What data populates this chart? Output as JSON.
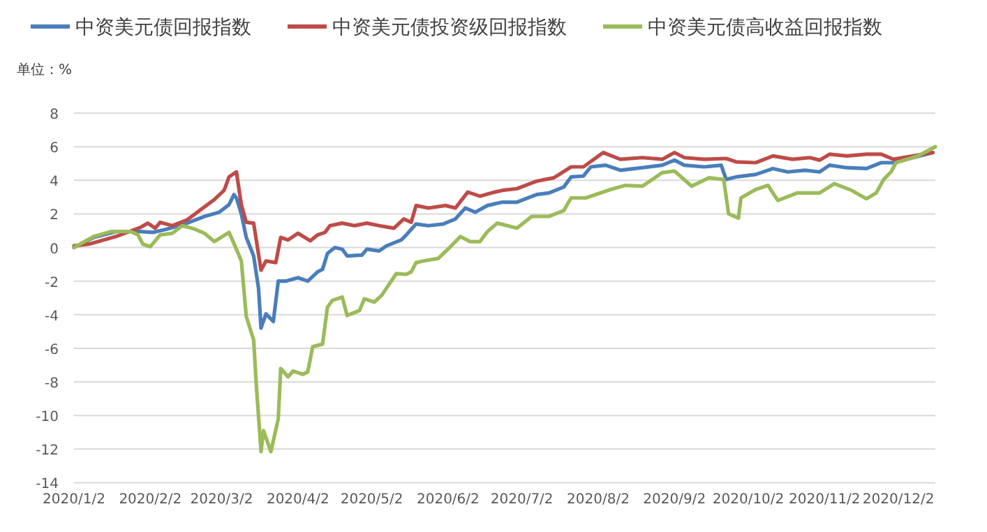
{
  "chart_data": {
    "type": "line",
    "ylabel": "单位：%",
    "legend": "top",
    "grid": "y",
    "line_style": "solid",
    "marker": "none",
    "xlim": [
      "2020-01-02",
      "2020-12-17"
    ],
    "xticks": [
      {
        "value": "2020-01-02",
        "label": "2020/1/2"
      },
      {
        "value": "2020-02-02",
        "label": "2020/2/2"
      },
      {
        "value": "2020-03-02",
        "label": "2020/3/2"
      },
      {
        "value": "2020-04-02",
        "label": "2020/4/2"
      },
      {
        "value": "2020-05-02",
        "label": "2020/5/2"
      },
      {
        "value": "2020-06-02",
        "label": "2020/6/2"
      },
      {
        "value": "2020-07-02",
        "label": "2020/7/2"
      },
      {
        "value": "2020-08-02",
        "label": "2020/8/2"
      },
      {
        "value": "2020-09-02",
        "label": "2020/9/2"
      },
      {
        "value": "2020-10-02",
        "label": "2020/10/2"
      },
      {
        "value": "2020-11-02",
        "label": "2020/11/2"
      },
      {
        "value": "2020-12-02",
        "label": "2020/12/2"
      }
    ],
    "ylim": [
      -14,
      8
    ],
    "yticks": [
      -14,
      -12,
      -10,
      -8,
      -6,
      -4,
      -2,
      0,
      2,
      4,
      6,
      8
    ],
    "series": [
      {
        "name": "中资美元债回报指数",
        "color": "#4a7ebb",
        "x": [
          "2020-01-02",
          "2020-01-10",
          "2020-01-19",
          "2020-01-29",
          "2020-02-03",
          "2020-02-09",
          "2020-02-17",
          "2020-02-24",
          "2020-03-01",
          "2020-03-05",
          "2020-03-07",
          "2020-03-08",
          "2020-03-10",
          "2020-03-12",
          "2020-03-15",
          "2020-03-17",
          "2020-03-18",
          "2020-03-20",
          "2020-03-23",
          "2020-03-25",
          "2020-03-28",
          "2020-04-02",
          "2020-04-06",
          "2020-04-10",
          "2020-04-12",
          "2020-04-14",
          "2020-04-17",
          "2020-04-20",
          "2020-04-22",
          "2020-04-28",
          "2020-04-30",
          "2020-05-05",
          "2020-05-08",
          "2020-05-14",
          "2020-05-16",
          "2020-05-20",
          "2020-05-25",
          "2020-05-31",
          "2020-06-05",
          "2020-06-09",
          "2020-06-13",
          "2020-06-18",
          "2020-06-24",
          "2020-06-30",
          "2020-07-08",
          "2020-07-13",
          "2020-07-19",
          "2020-07-22",
          "2020-07-27",
          "2020-07-30",
          "2020-08-05",
          "2020-08-11",
          "2020-08-20",
          "2020-08-28",
          "2020-09-02",
          "2020-09-06",
          "2020-09-14",
          "2020-09-21",
          "2020-09-23",
          "2020-09-27",
          "2020-10-05",
          "2020-10-12",
          "2020-10-18",
          "2020-10-25",
          "2020-10-31",
          "2020-11-04",
          "2020-11-11",
          "2020-11-19",
          "2020-11-25",
          "2020-11-30",
          "2020-12-08",
          "2020-12-16"
        ],
        "values": [
          0,
          0.6,
          0.95,
          0.95,
          0.9,
          1.1,
          1.45,
          1.85,
          2.1,
          2.55,
          3.15,
          2.95,
          2.0,
          0.6,
          -0.5,
          -2.45,
          -4.8,
          -3.95,
          -4.4,
          -2.0,
          -2.0,
          -1.8,
          -2.0,
          -1.45,
          -1.3,
          -0.35,
          0,
          -0.1,
          -0.5,
          -0.45,
          -0.1,
          -0.2,
          0.1,
          0.45,
          0.75,
          1.4,
          1.3,
          1.4,
          1.7,
          2.35,
          2.1,
          2.5,
          2.7,
          2.7,
          3.15,
          3.25,
          3.6,
          4.2,
          4.25,
          4.8,
          4.9,
          4.6,
          4.75,
          4.9,
          5.2,
          4.9,
          4.8,
          4.9,
          4.05,
          4.2,
          4.35,
          4.7,
          4.5,
          4.6,
          4.5,
          4.9,
          4.75,
          4.7,
          5.05,
          5.05,
          5.35,
          5.65
        ]
      },
      {
        "name": "中资美元债投资级回报指数",
        "color": "#be4b48",
        "x": [
          "2020-01-02",
          "2020-01-08",
          "2020-01-19",
          "2020-01-29",
          "2020-02-01",
          "2020-02-04",
          "2020-02-06",
          "2020-02-11",
          "2020-02-17",
          "2020-02-22",
          "2020-02-28",
          "2020-03-03",
          "2020-03-05",
          "2020-03-08",
          "2020-03-10",
          "2020-03-12",
          "2020-03-15",
          "2020-03-18",
          "2020-03-20",
          "2020-03-24",
          "2020-03-26",
          "2020-03-29",
          "2020-04-02",
          "2020-04-07",
          "2020-04-10",
          "2020-04-13",
          "2020-04-15",
          "2020-04-20",
          "2020-04-25",
          "2020-04-30",
          "2020-05-05",
          "2020-05-11",
          "2020-05-15",
          "2020-05-18",
          "2020-05-20",
          "2020-05-25",
          "2020-06-01",
          "2020-06-05",
          "2020-06-10",
          "2020-06-15",
          "2020-06-21",
          "2020-06-24",
          "2020-06-30",
          "2020-07-08",
          "2020-07-15",
          "2020-07-22",
          "2020-07-27",
          "2020-08-04",
          "2020-08-11",
          "2020-08-20",
          "2020-08-28",
          "2020-09-02",
          "2020-09-06",
          "2020-09-14",
          "2020-09-23",
          "2020-09-27",
          "2020-10-05",
          "2020-10-12",
          "2020-10-20",
          "2020-10-27",
          "2020-10-31",
          "2020-11-04",
          "2020-11-11",
          "2020-11-19",
          "2020-11-25",
          "2020-11-30",
          "2020-12-08",
          "2020-12-16"
        ],
        "values": [
          0.1,
          0.2,
          0.65,
          1.2,
          1.45,
          1.15,
          1.5,
          1.3,
          1.65,
          2.2,
          2.85,
          3.4,
          4.2,
          4.5,
          2.55,
          1.5,
          1.45,
          -1.35,
          -0.8,
          -0.9,
          0.6,
          0.45,
          0.85,
          0.4,
          0.75,
          0.9,
          1.3,
          1.45,
          1.3,
          1.45,
          1.3,
          1.15,
          1.7,
          1.5,
          2.5,
          2.35,
          2.5,
          2.35,
          3.3,
          3.05,
          3.3,
          3.4,
          3.5,
          3.95,
          4.15,
          4.8,
          4.8,
          5.65,
          5.25,
          5.35,
          5.25,
          5.65,
          5.35,
          5.25,
          5.3,
          5.1,
          5.05,
          5.45,
          5.25,
          5.35,
          5.2,
          5.55,
          5.45,
          5.55,
          5.55,
          5.25,
          5.45,
          5.65
        ]
      },
      {
        "name": "中资美元债高收益回报指数",
        "color": "#9bbb59",
        "x": [
          "2020-01-02",
          "2020-01-10",
          "2020-01-17",
          "2020-01-25",
          "2020-01-28",
          "2020-01-30",
          "2020-02-02",
          "2020-02-06",
          "2020-02-11",
          "2020-02-15",
          "2020-02-20",
          "2020-02-24",
          "2020-02-28",
          "2020-03-05",
          "2020-03-08",
          "2020-03-10",
          "2020-03-12",
          "2020-03-15",
          "2020-03-16",
          "2020-03-18",
          "2020-03-19",
          "2020-03-22",
          "2020-03-25",
          "2020-03-26",
          "2020-03-29",
          "2020-03-31",
          "2020-04-04",
          "2020-04-06",
          "2020-04-08",
          "2020-04-12",
          "2020-04-14",
          "2020-04-16",
          "2020-04-20",
          "2020-04-22",
          "2020-04-27",
          "2020-04-29",
          "2020-05-03",
          "2020-05-06",
          "2020-05-12",
          "2020-05-16",
          "2020-05-18",
          "2020-05-20",
          "2020-05-23",
          "2020-05-29",
          "2020-06-03",
          "2020-06-07",
          "2020-06-11",
          "2020-06-15",
          "2020-06-18",
          "2020-06-22",
          "2020-06-30",
          "2020-07-06",
          "2020-07-13",
          "2020-07-19",
          "2020-07-22",
          "2020-07-28",
          "2020-08-07",
          "2020-08-13",
          "2020-08-20",
          "2020-08-28",
          "2020-09-02",
          "2020-09-09",
          "2020-09-16",
          "2020-09-22",
          "2020-09-24",
          "2020-09-28",
          "2020-09-29",
          "2020-10-05",
          "2020-10-10",
          "2020-10-14",
          "2020-10-22",
          "2020-10-31",
          "2020-11-06",
          "2020-11-13",
          "2020-11-19",
          "2020-11-23",
          "2020-11-26",
          "2020-11-29",
          "2020-12-01",
          "2020-12-10",
          "2020-12-17"
        ],
        "values": [
          0,
          0.65,
          0.95,
          0.95,
          0.75,
          0.2,
          0.05,
          0.75,
          0.85,
          1.3,
          1.1,
          0.85,
          0.35,
          0.9,
          -0.1,
          -0.8,
          -4.1,
          -5.5,
          -8.0,
          -12.15,
          -10.9,
          -12.15,
          -10.2,
          -7.2,
          -7.7,
          -7.35,
          -7.55,
          -7.4,
          -5.9,
          -5.75,
          -3.55,
          -3.15,
          -2.95,
          -4.05,
          -3.75,
          -3.05,
          -3.25,
          -2.85,
          -1.55,
          -1.6,
          -1.45,
          -0.9,
          -0.8,
          -0.65,
          0.05,
          0.65,
          0.35,
          0.35,
          0.95,
          1.45,
          1.15,
          1.85,
          1.85,
          2.2,
          2.95,
          2.95,
          3.45,
          3.7,
          3.65,
          4.45,
          4.55,
          3.65,
          4.15,
          4.05,
          2.0,
          1.75,
          2.95,
          3.45,
          3.7,
          2.8,
          3.25,
          3.25,
          3.8,
          3.4,
          2.9,
          3.25,
          4.05,
          4.5,
          5.05,
          5.45,
          6.0
        ]
      }
    ]
  }
}
